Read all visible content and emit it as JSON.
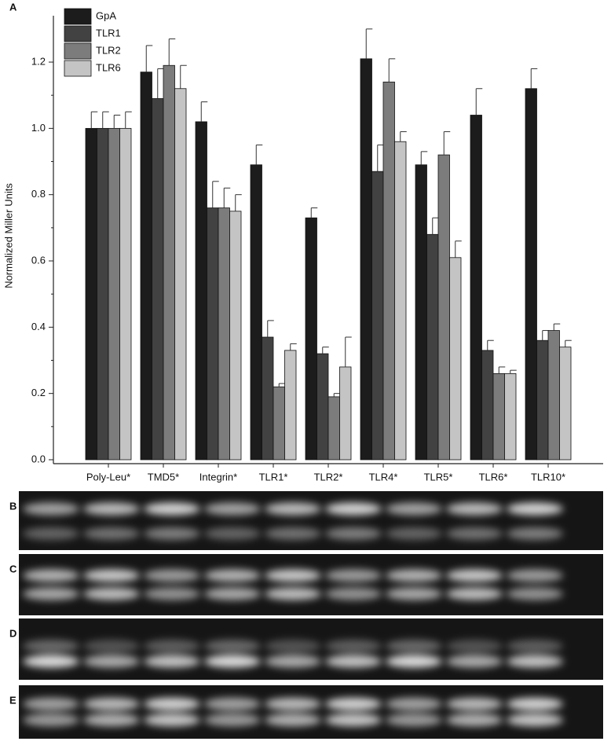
{
  "chart_data": {
    "type": "bar",
    "panel_label": "A",
    "ylabel": "Normalized Miller Units",
    "categories": [
      "Poly-Leu*",
      "TMD5*",
      "Integrin*",
      "TLR1*",
      "TLR2*",
      "TLR4*",
      "TLR5*",
      "TLR6*",
      "TLR10*"
    ],
    "series": [
      {
        "name": "GpA",
        "color": "#1c1c1c",
        "values": [
          1.0,
          1.17,
          1.02,
          0.89,
          0.73,
          1.21,
          0.89,
          1.04,
          1.12
        ],
        "errors": [
          0.05,
          0.08,
          0.06,
          0.06,
          0.03,
          0.09,
          0.04,
          0.08,
          0.06
        ]
      },
      {
        "name": "TLR1",
        "color": "#424242",
        "values": [
          1.0,
          1.09,
          0.76,
          0.37,
          0.32,
          0.87,
          0.68,
          0.33,
          0.36
        ],
        "errors": [
          0.05,
          0.09,
          0.08,
          0.05,
          0.02,
          0.08,
          0.05,
          0.03,
          0.03
        ]
      },
      {
        "name": "TLR2",
        "color": "#7c7c7c",
        "values": [
          1.0,
          1.19,
          0.76,
          0.22,
          0.19,
          1.14,
          0.92,
          0.26,
          0.39
        ],
        "errors": [
          0.04,
          0.08,
          0.06,
          0.01,
          0.01,
          0.07,
          0.07,
          0.02,
          0.02
        ]
      },
      {
        "name": "TLR6",
        "color": "#c4c4c4",
        "values": [
          1.0,
          1.12,
          0.75,
          0.33,
          0.28,
          0.96,
          0.61,
          0.26,
          0.34
        ],
        "errors": [
          0.05,
          0.07,
          0.05,
          0.02,
          0.09,
          0.03,
          0.05,
          0.01,
          0.02
        ]
      }
    ],
    "ylim": [
      0,
      1.34
    ],
    "yticks": [
      {
        "value": 0,
        "label": "0.0"
      },
      0.2,
      0.4,
      0.6,
      0.8,
      {
        "value": 1,
        "label": "1.0"
      },
      1.2
    ],
    "legend": "top-left"
  },
  "blots": [
    {
      "label": "B"
    },
    {
      "label": "C"
    },
    {
      "label": "D"
    },
    {
      "label": "E"
    }
  ]
}
